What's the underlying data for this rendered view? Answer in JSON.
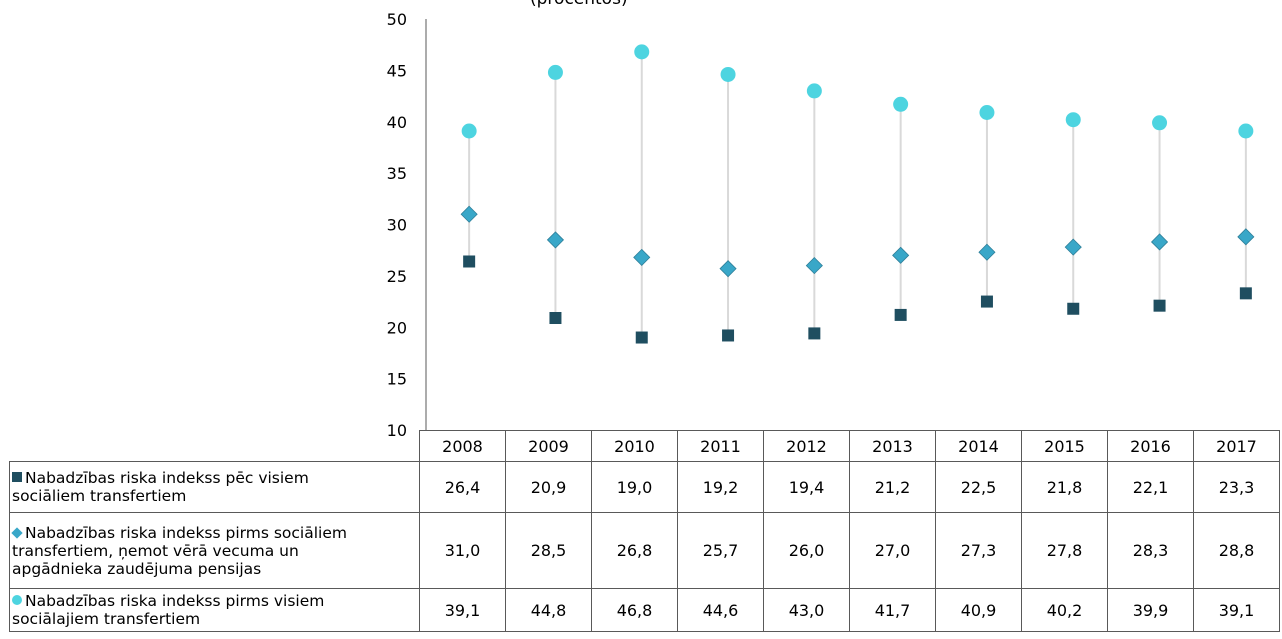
{
  "title_fragment": "(procentos)",
  "chart_data": {
    "type": "scatter",
    "title": "",
    "x": [
      "2008",
      "2009",
      "2010",
      "2011",
      "2012",
      "2013",
      "2014",
      "2015",
      "2016",
      "2017"
    ],
    "ylim": [
      10,
      50
    ],
    "y_ticks": [
      "10",
      "15",
      "20",
      "25",
      "30",
      "35",
      "40",
      "45",
      "50"
    ],
    "grid": false,
    "legend": "table",
    "high_low_lines": true,
    "series": [
      {
        "name": "Nabadzības riska indekss pēc visiem sociāliem transfertiem",
        "marker": "square",
        "color": "#1f4e60",
        "values": [
          26.4,
          20.9,
          19.0,
          19.2,
          19.4,
          21.2,
          22.5,
          21.8,
          22.1,
          23.3
        ],
        "labels": [
          "26,4",
          "20,9",
          "19,0",
          "19,2",
          "19,4",
          "21,2",
          "22,5",
          "21,8",
          "22,1",
          "23,3"
        ]
      },
      {
        "name": "Nabadzības riska indekss pirms sociāliem transfertiem, ņemot vērā vecuma un apgādnieka zaudējuma pensijas",
        "marker": "diamond",
        "color": "#39a7c8",
        "values": [
          31.0,
          28.5,
          26.8,
          25.7,
          26.0,
          27.0,
          27.3,
          27.8,
          28.3,
          28.8
        ],
        "labels": [
          "31,0",
          "28,5",
          "26,8",
          "25,7",
          "26,0",
          "27,0",
          "27,3",
          "27,8",
          "28,3",
          "28,8"
        ]
      },
      {
        "name": "Nabadzības riska indekss pirms visiem sociālajiem transfertiem",
        "marker": "circle",
        "color": "#4dd4e0",
        "values": [
          39.1,
          44.8,
          46.8,
          44.6,
          43.0,
          41.7,
          40.9,
          40.2,
          39.9,
          39.1
        ],
        "labels": [
          "39,1",
          "44,8",
          "46,8",
          "44,6",
          "43,0",
          "41,7",
          "40,9",
          "40,2",
          "39,9",
          "39,1"
        ]
      }
    ]
  },
  "table": {
    "row_labels": [
      [
        "Nabadzības riska indekss pēc visiem",
        "sociāliem transfertiem"
      ],
      [
        "Nabadzības riska indekss pirms sociāliem",
        "transfertiem, ņemot vērā vecuma un",
        "apgādnieka zaudējuma pensijas"
      ],
      [
        "Nabadzības riska indekss pirms visiem",
        "sociālajiem transfertiem"
      ]
    ]
  }
}
